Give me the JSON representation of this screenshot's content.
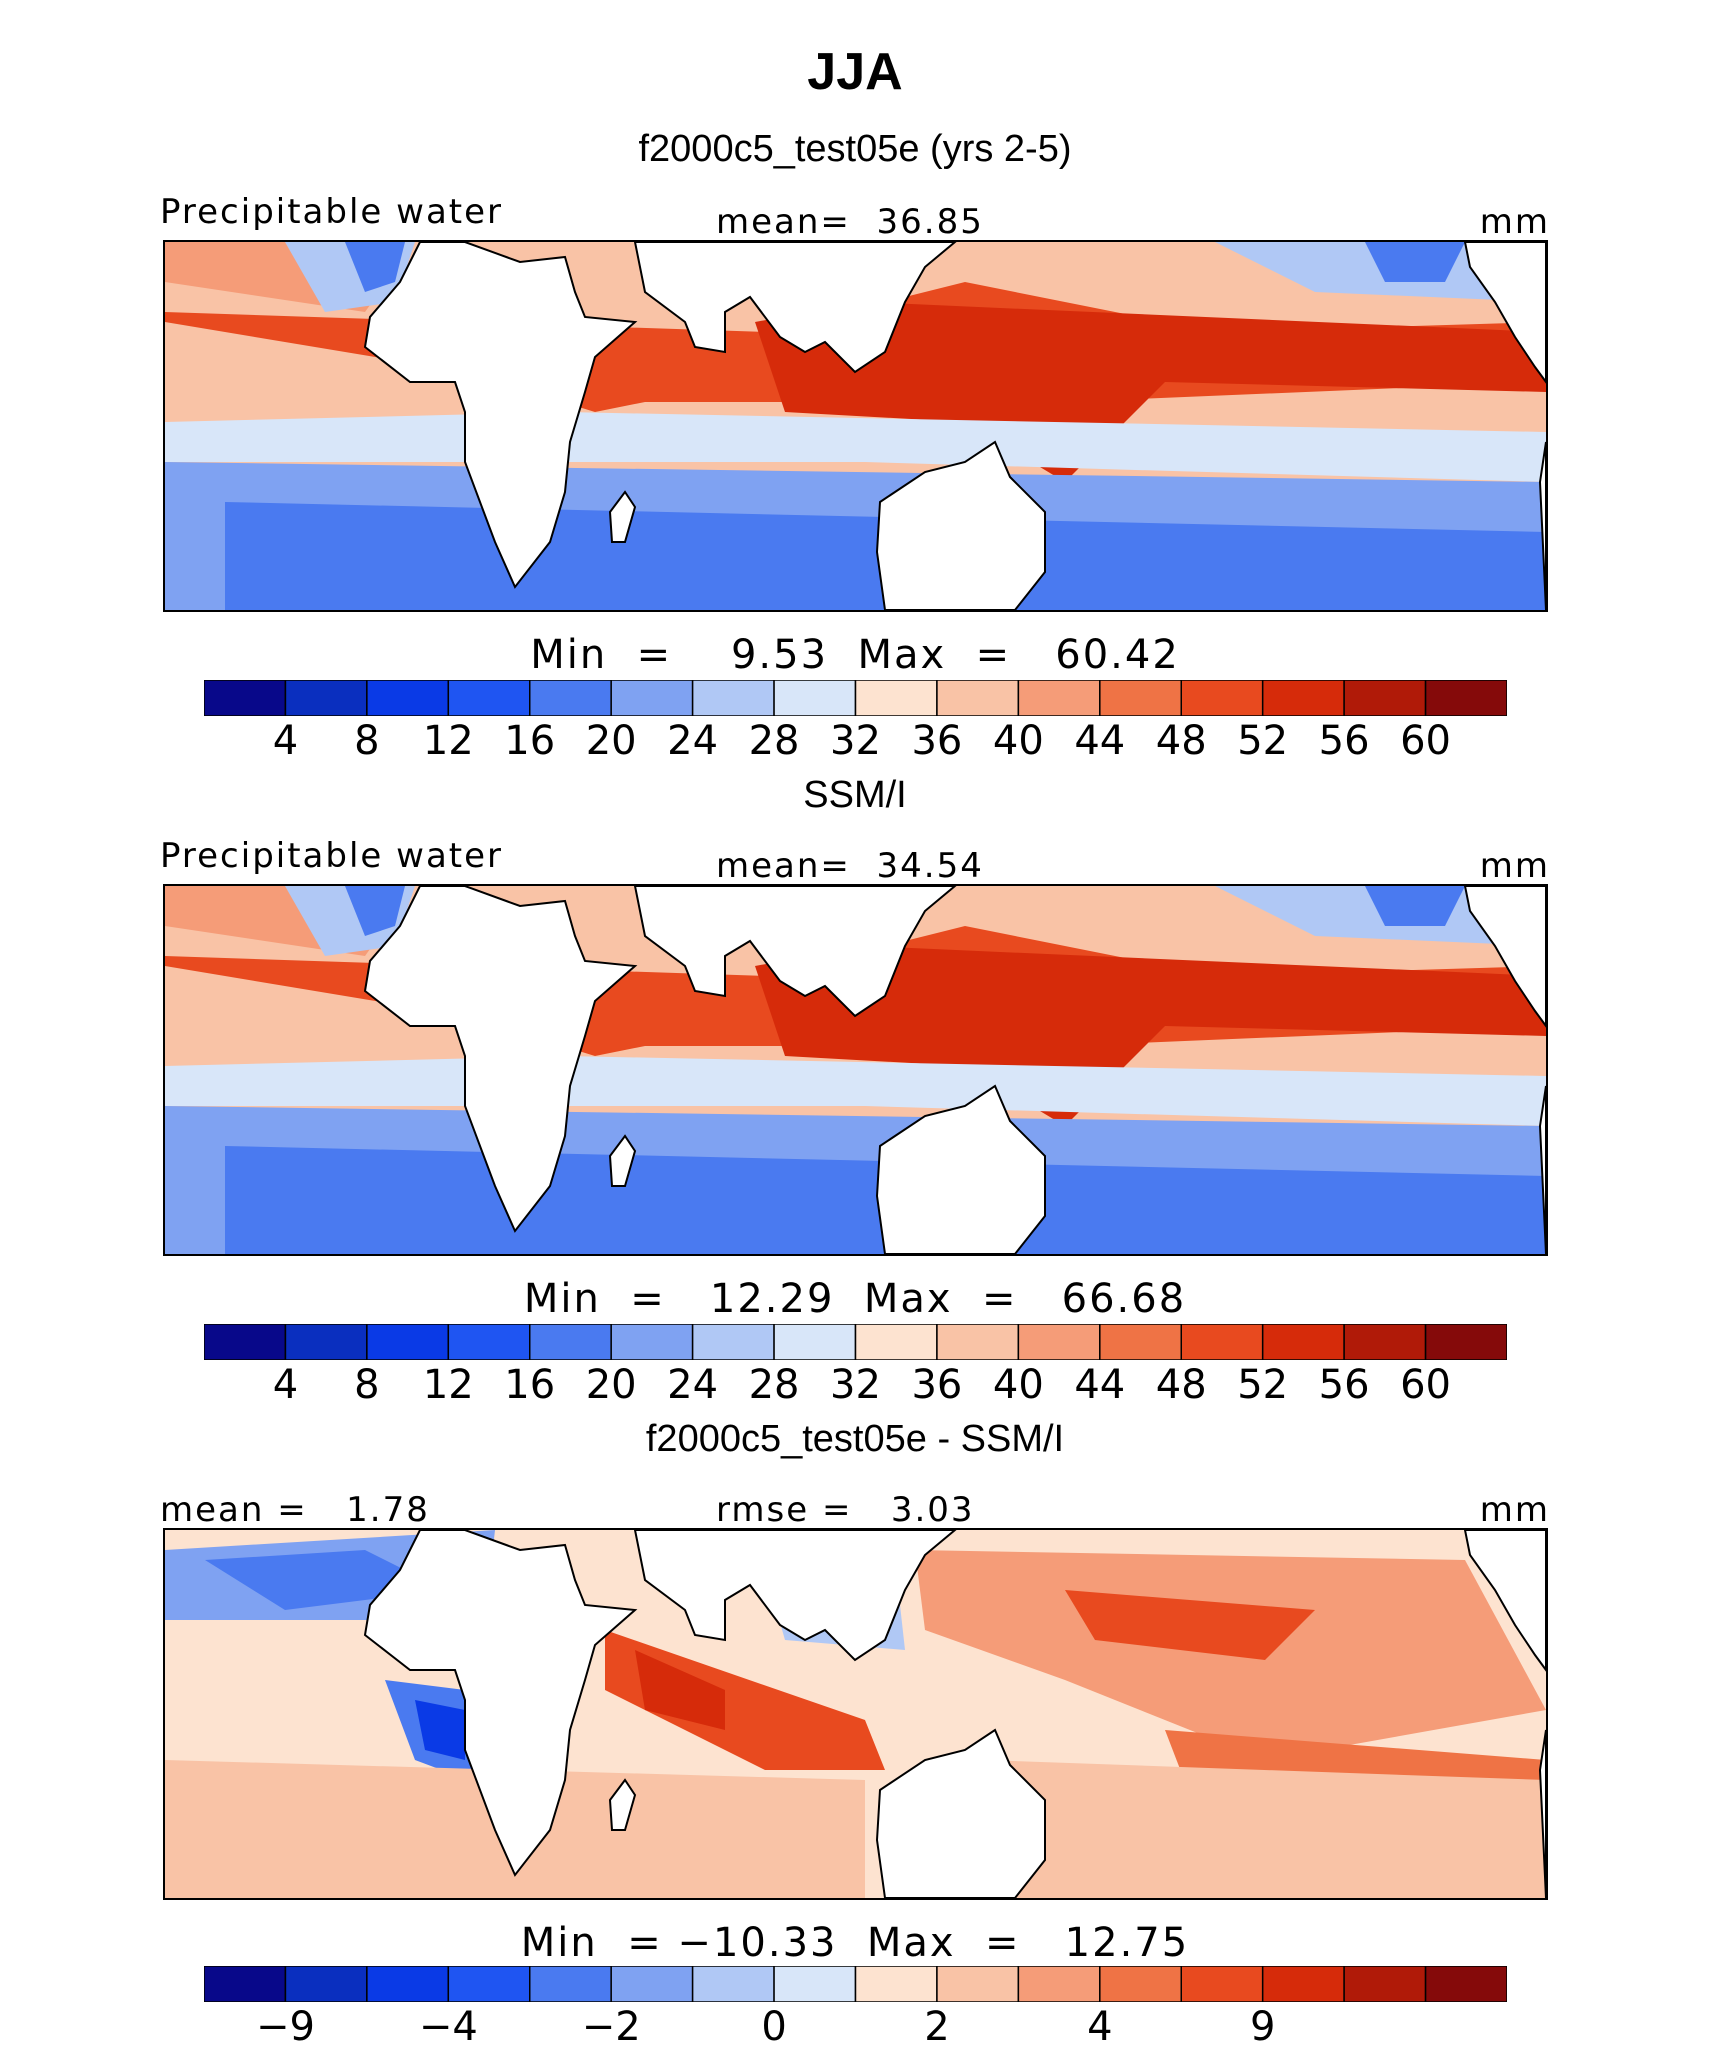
{
  "title": "JJA",
  "colors": [
    "#08088a",
    "#0a2fbf",
    "#0a3ae6",
    "#1f55f2",
    "#4a7af0",
    "#7fa2f2",
    "#b0c8f5",
    "#d8e6f9",
    "#fde3d0",
    "#f9c3a6",
    "#f59c78",
    "#ef7345",
    "#e84a1f",
    "#d62b0a",
    "#b01a08",
    "#850a0a"
  ],
  "land_color": "#ffffff",
  "panels": [
    {
      "title": "f2000c5_test05e (yrs 2-5)",
      "left_label": "Precipitable water",
      "center_label": "mean=  36.85",
      "right_label": "mm",
      "stats": "Min  =    9.53  Max  =   60.42",
      "ticks": [
        "4",
        "8",
        "12",
        "16",
        "20",
        "24",
        "28",
        "32",
        "36",
        "40",
        "44",
        "48",
        "52",
        "56",
        "60"
      ]
    },
    {
      "title": "SSM/I",
      "left_label": "Precipitable water",
      "center_label": "mean=  34.54",
      "right_label": "mm",
      "stats": "Min  =   12.29  Max  =   66.68",
      "ticks": [
        "4",
        "8",
        "12",
        "16",
        "20",
        "24",
        "28",
        "32",
        "36",
        "40",
        "44",
        "48",
        "52",
        "56",
        "60"
      ]
    },
    {
      "title": "f2000c5_test05e - SSM/I",
      "left_label": "mean =   1.78",
      "center_label": "rmse =   3.03",
      "right_label": "mm",
      "stats": "Min  = −10.33  Max  =   12.75",
      "ticks": [
        "−9",
        "",
        "−4",
        "",
        "−2",
        "",
        "0",
        "",
        "2",
        "",
        "4",
        "",
        "9",
        "",
        ""
      ]
    }
  ]
}
